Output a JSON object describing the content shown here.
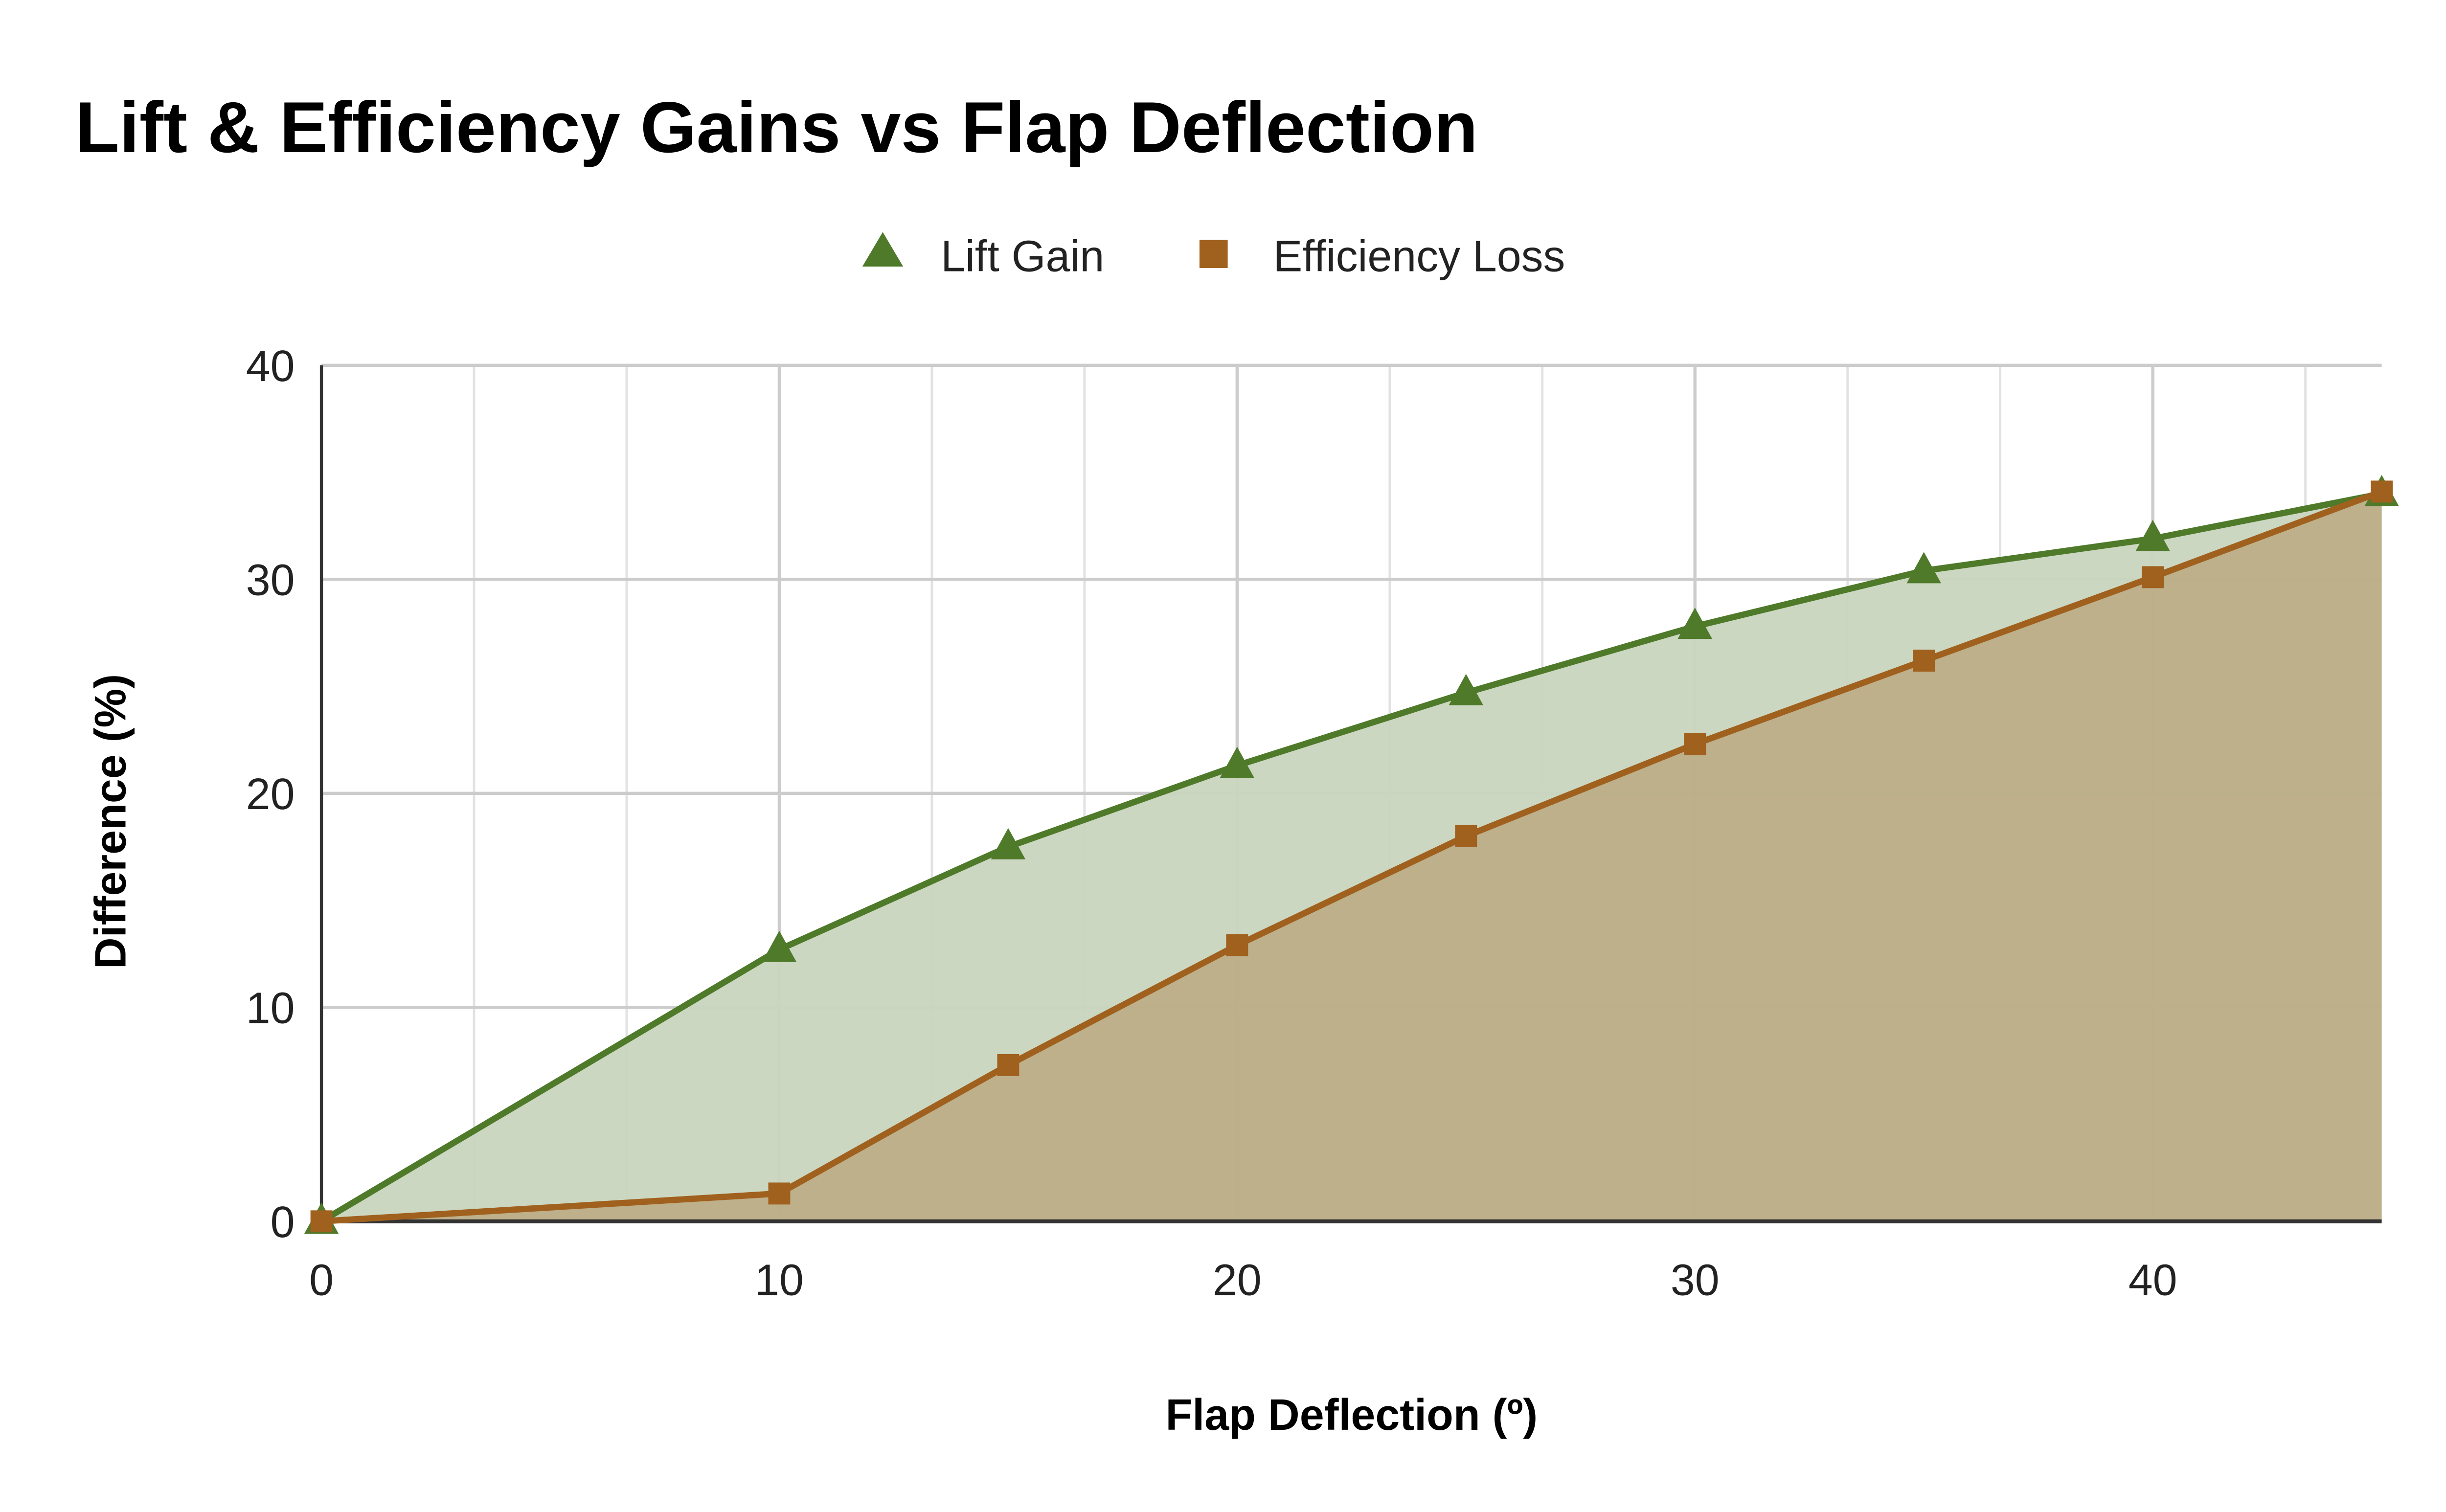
{
  "chart_data": {
    "type": "area",
    "title": "Lift & Efficiency Gains vs Flap Deflection",
    "xlabel": "Flap Deflection (º)",
    "ylabel": "Difference (%)",
    "x": [
      0,
      10,
      15,
      20,
      25,
      30,
      35,
      40,
      45
    ],
    "xlim": [
      0,
      45
    ],
    "ylim": [
      0,
      40
    ],
    "xticks": [
      "0",
      "10",
      "20",
      "30",
      "40"
    ],
    "yticks": [
      "0",
      "10",
      "20",
      "30",
      "40"
    ],
    "grid": true,
    "legend_position": "top",
    "series": [
      {
        "name": "Lift Gain",
        "marker": "triangle",
        "color": "#4e7a2a",
        "fill": "#c8d5be",
        "values": [
          0,
          12.7,
          17.5,
          21.3,
          24.7,
          27.8,
          30.4,
          31.9,
          34.0
        ]
      },
      {
        "name": "Efficiency Loss",
        "marker": "square",
        "color": "#a0601e",
        "fill": "#bcae88",
        "values": [
          0,
          1.3,
          7.3,
          12.9,
          18.0,
          22.3,
          26.2,
          30.1,
          34.1
        ]
      }
    ]
  }
}
